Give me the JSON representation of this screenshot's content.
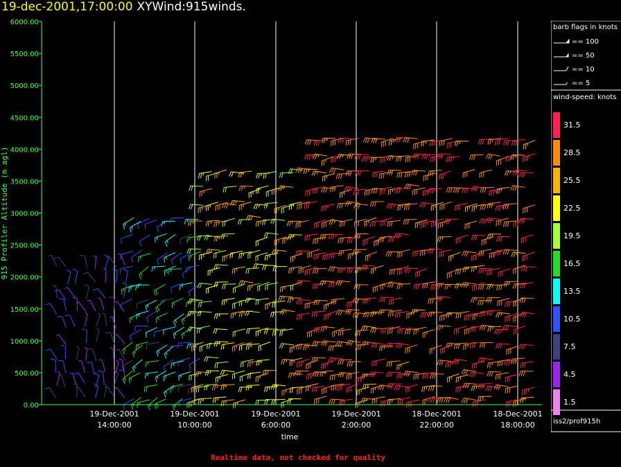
{
  "header": {
    "date": "19-dec-2001,17:00:00",
    "title": "XYWind:915winds."
  },
  "footer": {
    "note": "Realtime data, not checked for quality"
  },
  "legend": {
    "barb_title": "barb flags in knots",
    "barb_items": [
      "== 100",
      "== 50",
      "== 10",
      "== 5"
    ],
    "speed_title": "wind-speed: knots",
    "colorscale": [
      {
        "value": "31.5",
        "color": "#ff1f4f"
      },
      {
        "value": "28.5",
        "color": "#ff8c00"
      },
      {
        "value": "25.5",
        "color": "#ffb000"
      },
      {
        "value": "22.5",
        "color": "#ffff00"
      },
      {
        "value": "19.5",
        "color": "#a8ff30"
      },
      {
        "value": "16.5",
        "color": "#20e020"
      },
      {
        "value": "13.5",
        "color": "#00ffff"
      },
      {
        "value": "10.5",
        "color": "#3050ff"
      },
      {
        "value": "7.5",
        "color": "#404080"
      },
      {
        "value": "4.5",
        "color": "#a020f0"
      },
      {
        "value": "1.5",
        "color": "#ee82ee"
      }
    ],
    "source": "iss2/prof915h"
  },
  "chart_data": {
    "type": "scatter",
    "subtype": "wind-barbs",
    "xlabel": "time",
    "ylabel": "915 Profiler Altitude (m agl)",
    "ylim": [
      0,
      6000
    ],
    "y_ticks": [
      "0.00",
      "500.00",
      "1000.00",
      "1500.00",
      "2000.00",
      "2500.00",
      "3000.00",
      "3500.00",
      "4000.00",
      "4500.00",
      "5000.00",
      "5500.00",
      "6000.00"
    ],
    "x_ticks": [
      {
        "date": "19-Dec-2001",
        "time": "14:00:00"
      },
      {
        "date": "19-Dec-2001",
        "time": "10:00:00"
      },
      {
        "date": "19-Dec-2001",
        "time": "6:00:00"
      },
      {
        "date": "19-Dec-2001",
        "time": "2:00:00"
      },
      {
        "date": "18-Dec-2001",
        "time": "22:00:00"
      },
      {
        "date": "18-Dec-2001",
        "time": "18:00:00"
      }
    ],
    "x_axis_direction": "time decreasing to the right",
    "grid": "vertical lines at x ticks",
    "levels_m": [
      100,
      300,
      500,
      700,
      950,
      1200,
      1450,
      1650,
      1900,
      2150,
      2400,
      2650,
      2900,
      3150,
      3400,
      3650,
      3900,
      4150
    ],
    "speed_regions": [
      {
        "from": "19-Dec-2001 15:30",
        "to": "19-Dec-2001 13:30",
        "speed_kt": [
          3,
          12
        ],
        "top_m": 2200
      },
      {
        "from": "19-Dec-2001 13:30",
        "to": "19-Dec-2001 10:00",
        "speed_kt": [
          8,
          18
        ],
        "top_m": 2950
      },
      {
        "from": "19-Dec-2001 10:00",
        "to": "19-Dec-2001 4:00",
        "speed_kt": [
          18,
          28
        ],
        "top_m": 3650
      },
      {
        "from": "19-Dec-2001 4:00",
        "to": "18-Dec-2001 17:00",
        "speed_kt": [
          26,
          33
        ],
        "top_m": 4350
      }
    ]
  }
}
